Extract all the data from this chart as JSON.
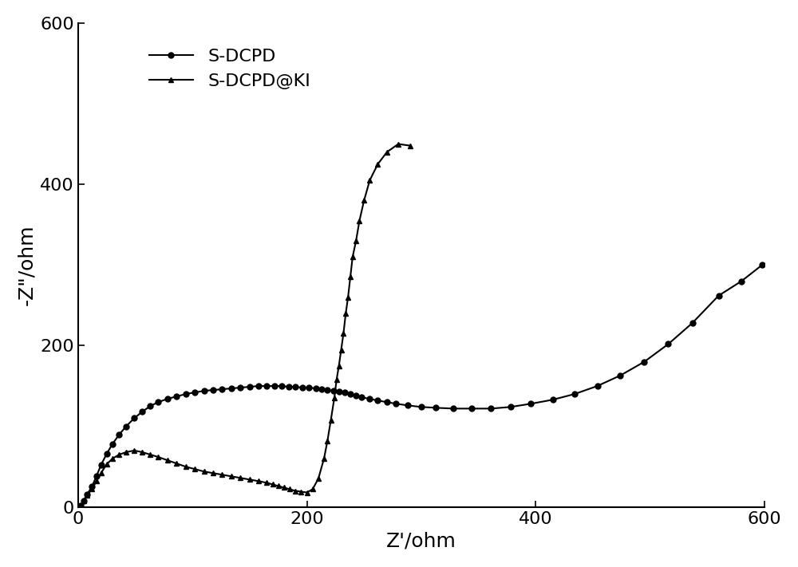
{
  "xlabel": "Z'/ohm",
  "ylabel": "-Z’’/ohm",
  "xlim": [
    0,
    600
  ],
  "ylim": [
    0,
    600
  ],
  "xticks": [
    0,
    200,
    400,
    600
  ],
  "yticks": [
    0,
    200,
    400,
    600
  ],
  "line_color": "#000000",
  "legend_labels": [
    "S-DCPD",
    "S-DCPD@KI"
  ],
  "s_dcpd_x": [
    2,
    5,
    8,
    12,
    16,
    20,
    25,
    30,
    36,
    42,
    49,
    56,
    63,
    70,
    78,
    86,
    94,
    102,
    110,
    118,
    126,
    134,
    142,
    150,
    158,
    165,
    172,
    178,
    184,
    190,
    196,
    202,
    208,
    213,
    218,
    223,
    228,
    233,
    238,
    243,
    248,
    255,
    262,
    270,
    278,
    288,
    300,
    313,
    328,
    344,
    361,
    378,
    396,
    415,
    434,
    454,
    474,
    495,
    516,
    537,
    560,
    580,
    598
  ],
  "s_dcpd_y": [
    2,
    8,
    16,
    25,
    38,
    52,
    66,
    78,
    90,
    100,
    110,
    118,
    125,
    130,
    134,
    137,
    140,
    142,
    144,
    145,
    146,
    147,
    148,
    149,
    150,
    150,
    150,
    150,
    149,
    149,
    148,
    148,
    147,
    146,
    145,
    144,
    143,
    142,
    140,
    138,
    136,
    134,
    132,
    130,
    128,
    126,
    124,
    123,
    122,
    122,
    122,
    124,
    128,
    133,
    140,
    150,
    163,
    180,
    202,
    228,
    262,
    280,
    300
  ],
  "s_dcpd_ki_x": [
    2,
    5,
    8,
    12,
    16,
    20,
    25,
    30,
    36,
    42,
    49,
    56,
    63,
    70,
    78,
    86,
    94,
    102,
    110,
    118,
    126,
    134,
    142,
    150,
    158,
    165,
    170,
    175,
    180,
    185,
    190,
    195,
    200,
    205,
    210,
    215,
    218,
    221,
    224,
    226,
    228,
    230,
    232,
    234,
    236,
    238,
    240,
    243,
    246,
    250,
    255,
    262,
    270,
    280,
    290
  ],
  "s_dcpd_ki_y": [
    2,
    8,
    15,
    22,
    32,
    42,
    53,
    60,
    65,
    68,
    70,
    68,
    65,
    62,
    58,
    54,
    50,
    47,
    44,
    42,
    40,
    38,
    36,
    34,
    32,
    30,
    28,
    26,
    24,
    22,
    20,
    19,
    18,
    22,
    35,
    60,
    82,
    108,
    135,
    158,
    175,
    195,
    215,
    240,
    260,
    285,
    310,
    330,
    355,
    380,
    405,
    425,
    440,
    450,
    448
  ]
}
